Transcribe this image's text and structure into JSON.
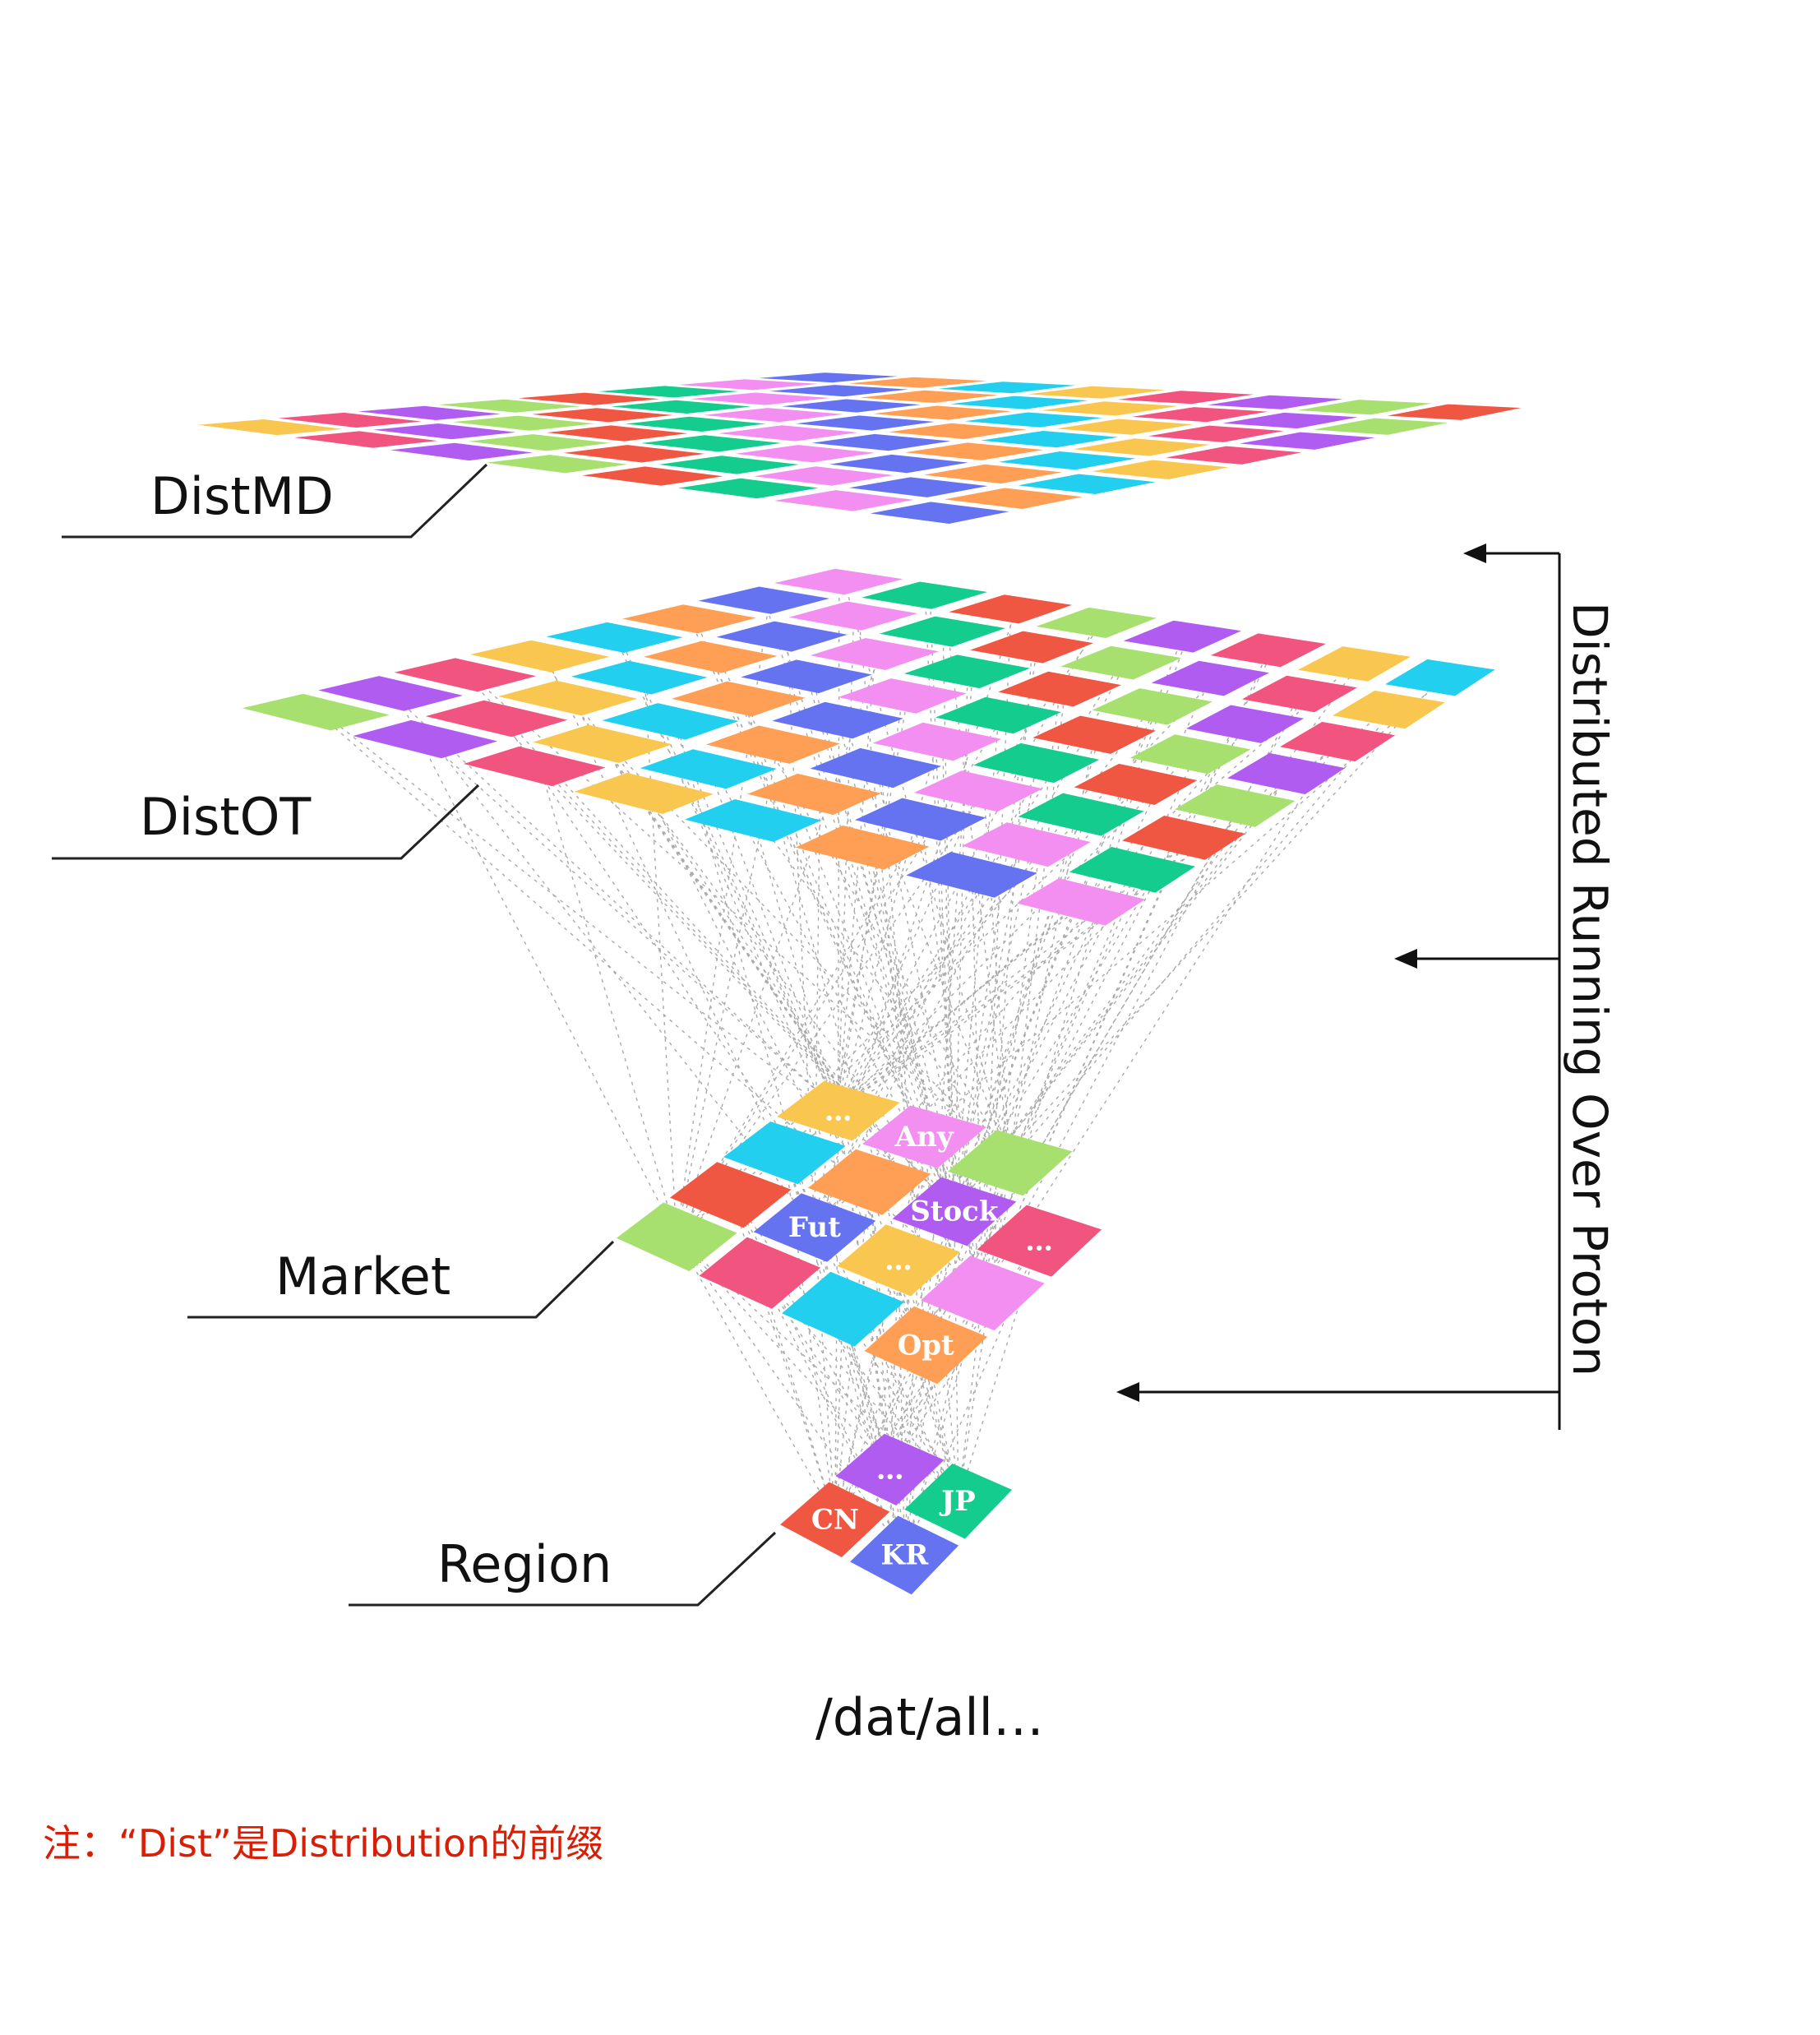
{
  "layers": {
    "distmd": {
      "label": "DistMD"
    },
    "distot": {
      "label": "DistOT"
    },
    "market": {
      "label": "Market",
      "tile_labels": {
        "dots_top": "…",
        "any": "Any",
        "fut": "Fut",
        "stock": "Stock",
        "dots_right": "…",
        "dots_mid": "…",
        "opt": "Opt"
      }
    },
    "region": {
      "label": "Region",
      "tile_labels": {
        "dots": "…",
        "cn": "CN",
        "jp": "JP",
        "kr": "KR"
      }
    }
  },
  "side_label": "Distributed Running Over Proton",
  "path_label": "/dat/all…",
  "note": "注：“Dist”是Distribution的前缀",
  "colors": {
    "palette": [
      "#ef5742",
      "#6673f0",
      "#f9c74f",
      "#a8e06f",
      "#f28ff0",
      "#23cfee",
      "#b15cf0",
      "#14cc8e",
      "#ff9f55",
      "#f0547f"
    ],
    "note": "#d81e06"
  }
}
